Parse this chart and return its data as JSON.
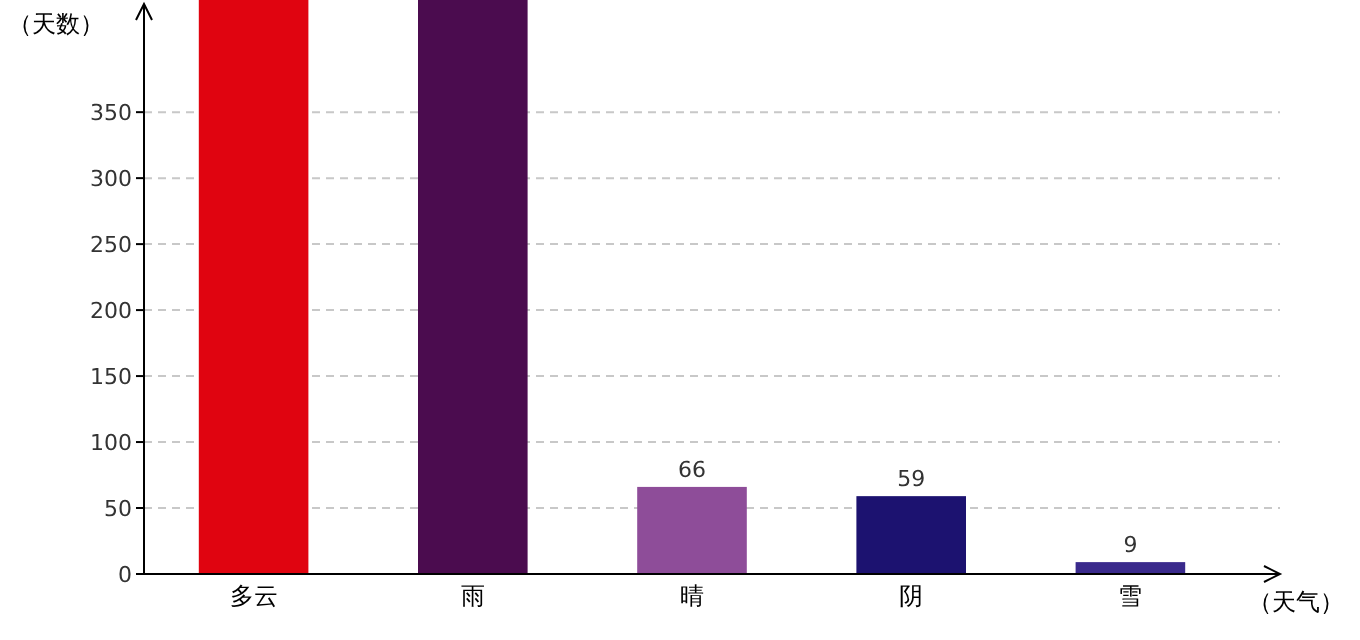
{
  "chart_data": {
    "type": "bar",
    "xlabel": "（天气）",
    "ylabel": "（天数）",
    "categories": [
      "多云",
      "雨",
      "晴",
      "阴",
      "雪"
    ],
    "values": [
      435,
      435,
      66,
      59,
      9
    ],
    "colors": [
      "#e00410",
      "#4b0c4f",
      "#8e4d99",
      "#1c1270",
      "#3a2a8c"
    ],
    "value_labels": [
      null,
      null,
      "66",
      "59",
      "9"
    ],
    "ylim": [
      0,
      435
    ],
    "yticks": [
      0,
      50,
      100,
      150,
      200,
      250,
      300,
      350
    ],
    "grid": "y"
  }
}
